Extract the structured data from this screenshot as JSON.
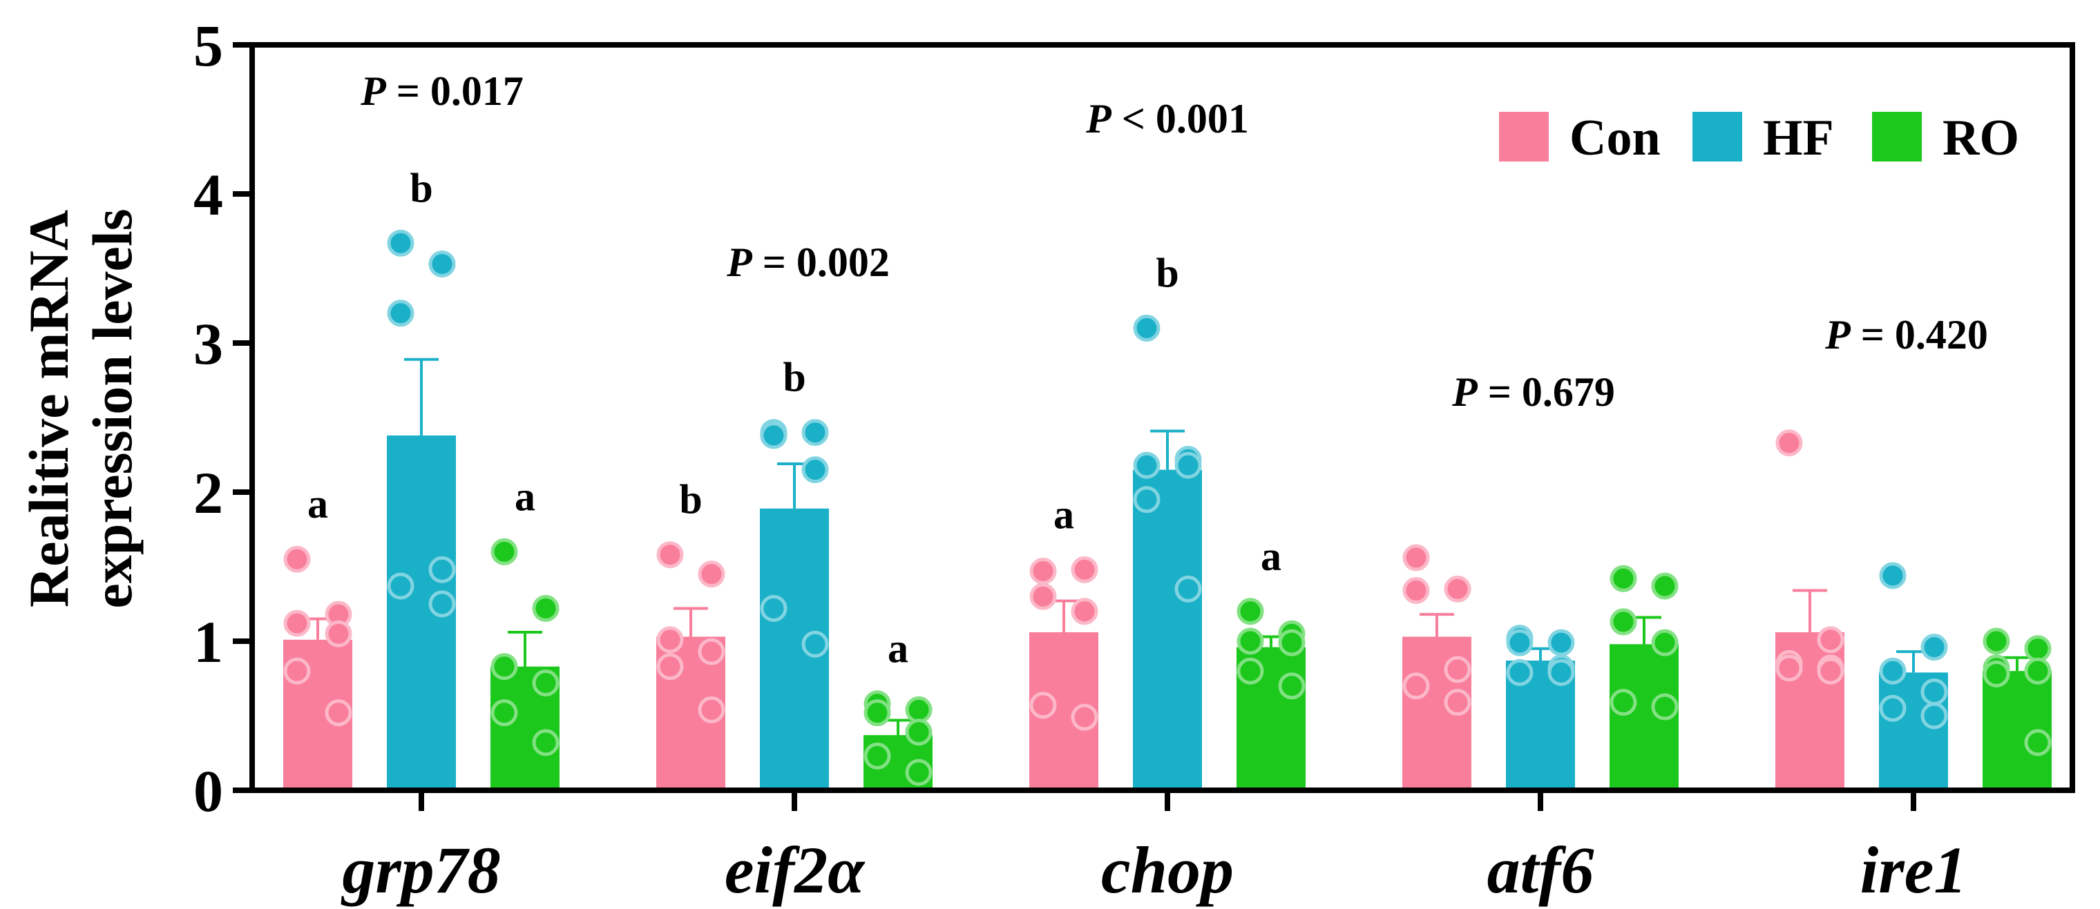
{
  "chart_data": {
    "type": "bar",
    "ylabel": [
      "Realitive mRNA",
      "expression levels"
    ],
    "ylim": [
      0,
      5
    ],
    "yticks": [
      0,
      1,
      2,
      3,
      4,
      5
    ],
    "categories": [
      "grp78",
      "eif2α",
      "chop",
      "atf6",
      "ire1"
    ],
    "legend_placement": "top-right",
    "series": [
      {
        "name": "Con",
        "color": "#F97E9B",
        "values": [
          1.01,
          1.03,
          1.06,
          1.03,
          1.06
        ],
        "sem": [
          0.14,
          0.19,
          0.21,
          0.15,
          0.28
        ],
        "points": [
          [
            1.55,
            1.18,
            1.12,
            1.05,
            0.8,
            0.52
          ],
          [
            1.58,
            1.45,
            1.01,
            0.93,
            0.83,
            0.54
          ],
          [
            1.47,
            1.48,
            1.3,
            1.2,
            0.57,
            0.49
          ],
          [
            1.56,
            1.35,
            1.34,
            0.81,
            0.7,
            0.59
          ],
          [
            2.33,
            1.01,
            0.85,
            0.82,
            0.82,
            0.8
          ]
        ]
      },
      {
        "name": "HF",
        "color": "#1AB0C8",
        "values": [
          2.38,
          1.89,
          2.15,
          0.87,
          0.79
        ],
        "sem": [
          0.51,
          0.3,
          0.26,
          0.08,
          0.14
        ],
        "points": [
          [
            3.67,
            3.53,
            3.2,
            1.48,
            1.37,
            1.25
          ],
          [
            2.4,
            2.4,
            2.38,
            2.15,
            1.22,
            0.98
          ],
          [
            3.1,
            2.22,
            2.18,
            2.18,
            1.95,
            1.35
          ],
          [
            1.02,
            0.99,
            0.99,
            0.82,
            0.79,
            0.79
          ],
          [
            1.44,
            0.96,
            0.8,
            0.66,
            0.55,
            0.5
          ]
        ]
      },
      {
        "name": "RO",
        "color": "#1CC81C",
        "values": [
          0.83,
          0.37,
          0.96,
          0.98,
          0.8
        ],
        "sem": [
          0.23,
          0.1,
          0.07,
          0.18,
          0.09
        ],
        "points": [
          [
            1.6,
            1.22,
            0.83,
            0.72,
            0.52,
            0.32
          ],
          [
            0.58,
            0.54,
            0.52,
            0.39,
            0.23,
            0.12
          ],
          [
            1.2,
            1.05,
            1.0,
            0.99,
            0.8,
            0.7
          ],
          [
            1.42,
            1.37,
            1.13,
            0.99,
            0.59,
            0.56
          ],
          [
            1.0,
            0.95,
            0.82,
            0.8,
            0.78,
            0.32
          ]
        ]
      }
    ],
    "significance_letters": [
      [
        "a",
        "b",
        "a"
      ],
      [
        "b",
        "b",
        "a"
      ],
      [
        "a",
        "b",
        "a"
      ],
      [
        "",
        "",
        ""
      ],
      [
        "",
        "",
        ""
      ]
    ],
    "p_values": [
      {
        "p": "P",
        "rest": " = 0.017"
      },
      {
        "p": "P",
        "rest": " = 0.002"
      },
      {
        "p": "P",
        "rest": " < 0.001"
      },
      {
        "p": "P",
        "rest": " = 0.679"
      },
      {
        "p": "P",
        "rest": " = 0.420"
      }
    ]
  }
}
